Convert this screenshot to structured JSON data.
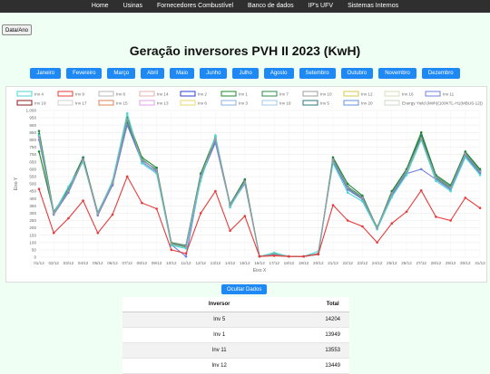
{
  "nav": {
    "items": [
      "Home",
      "Usinas",
      "Fornecedores Combustível",
      "Banco de dados",
      "IP's UFV",
      "Sistemas Internos"
    ]
  },
  "date_button": "Data/Ano",
  "title": "Geração inversores PVH II 2023 (KwH)",
  "months": [
    "Janeiro",
    "Fevereiro",
    "Março",
    "Abril",
    "Maio",
    "Junho",
    "Julho",
    "Agosto",
    "Setembro",
    "Outubro",
    "Novembro",
    "Dezembro"
  ],
  "hide_button": "Ocultar Dados",
  "table": {
    "headers": [
      "Inversor",
      "Total"
    ],
    "rows": [
      {
        "name": "Inv 5",
        "total": "14204"
      },
      {
        "name": "Inv 1",
        "total": "13949"
      },
      {
        "name": "Inv 11",
        "total": "13553"
      },
      {
        "name": "Inv 12",
        "total": "13449"
      }
    ]
  },
  "chart_data": {
    "type": "line",
    "xlabel": "Eixo X",
    "ylabel": "Eixo Y",
    "ylim": [
      0,
      1000
    ],
    "yticks": [
      0,
      50,
      100,
      150,
      200,
      250,
      300,
      350,
      400,
      450,
      500,
      550,
      600,
      650,
      700,
      750,
      800,
      850,
      900,
      950,
      1000
    ],
    "ytick_labels": [
      "0",
      "50",
      "100",
      "150",
      "200",
      "250",
      "300",
      "350",
      "400",
      "450",
      "500",
      "550",
      "600",
      "650",
      "700",
      "750",
      "800",
      "850",
      "900",
      "950",
      "1.000"
    ],
    "x": [
      "01/12",
      "02/12",
      "03/12",
      "04/12",
      "05/12",
      "06/12",
      "07/12",
      "08/12",
      "09/12",
      "10/12",
      "11/12",
      "12/12",
      "13/12",
      "14/12",
      "15/12",
      "16/12",
      "17/12",
      "18/12",
      "19/12",
      "20/12",
      "21/12",
      "22/12",
      "23/12",
      "24/12",
      "25/12",
      "26/12",
      "27/12",
      "28/12",
      "29/12",
      "30/12",
      "31/12"
    ],
    "legend": [
      {
        "name": "Inv 4",
        "color": "#4bd6d6"
      },
      {
        "name": "Inv 9",
        "color": "#e83a3a"
      },
      {
        "name": "Inv 8",
        "color": "#b9b9b9"
      },
      {
        "name": "Inv 14",
        "color": "#e8b0b0"
      },
      {
        "name": "Inv 2",
        "color": "#2b3fd1"
      },
      {
        "name": "Inv 1",
        "color": "#1b8a2a"
      },
      {
        "name": "Inv 7",
        "color": "#2b8c4a"
      },
      {
        "name": "Inv 10",
        "color": "#9c9c9c"
      },
      {
        "name": "Inv 12",
        "color": "#d9c84a"
      },
      {
        "name": "Inv 16",
        "color": "#d8dcb8"
      },
      {
        "name": "Inv 11",
        "color": "#7080e0"
      },
      {
        "name": "Inv 19",
        "color": "#8a1a1a"
      },
      {
        "name": "Inv 17",
        "color": "#d0d0d0"
      },
      {
        "name": "Inv 15",
        "color": "#e08050"
      },
      {
        "name": "Inv 13",
        "color": "#e0a0e8"
      },
      {
        "name": "Inv 6",
        "color": "#e8d870"
      },
      {
        "name": "Inv 3",
        "color": "#8ab0e8"
      },
      {
        "name": "Inv 18",
        "color": "#a0c8e8"
      },
      {
        "name": "Inv 5",
        "color": "#2a7a7a"
      },
      {
        "name": "Inv 20",
        "color": "#6090d8"
      },
      {
        "name": "Energy Yield (kWh)(100KTL-H1(MBUS-12))",
        "color": "#c8d8c8"
      }
    ],
    "series": [
      {
        "name": "Inv 1",
        "color": "#1b8a2a",
        "values": [
          720,
          300,
          470,
          680,
          300,
          500,
          950,
          680,
          610,
          100,
          80,
          570,
          820,
          360,
          530,
          5,
          20,
          5,
          5,
          20,
          680,
          500,
          420,
          200,
          450,
          600,
          850,
          560,
          490,
          720,
          600
        ]
      },
      {
        "name": "Inv 5",
        "color": "#2a7a7a",
        "values": [
          840,
          295,
          450,
          680,
          290,
          500,
          930,
          660,
          600,
          95,
          80,
          560,
          800,
          360,
          520,
          5,
          15,
          5,
          5,
          20,
          670,
          480,
          410,
          200,
          440,
          590,
          830,
          550,
          480,
          710,
          590
        ]
      },
      {
        "name": "Inv 7",
        "color": "#2b8c4a",
        "values": [
          860,
          310,
          460,
          670,
          305,
          510,
          910,
          670,
          590,
          90,
          70,
          550,
          790,
          355,
          510,
          5,
          25,
          5,
          5,
          25,
          660,
          470,
          400,
          205,
          430,
          580,
          820,
          540,
          470,
          700,
          580
        ]
      },
      {
        "name": "Inv 11",
        "color": "#7080e0",
        "values": [
          800,
          290,
          440,
          660,
          285,
          490,
          900,
          650,
          580,
          85,
          5,
          540,
          780,
          350,
          500,
          5,
          15,
          5,
          5,
          20,
          650,
          460,
          395,
          195,
          420,
          570,
          600,
          530,
          460,
          690,
          570
        ]
      },
      {
        "name": "Inv 4",
        "color": "#4bd6d6",
        "values": [
          830,
          300,
          480,
          650,
          300,
          520,
          980,
          640,
          570,
          80,
          60,
          520,
          830,
          340,
          510,
          5,
          30,
          5,
          5,
          40,
          640,
          440,
          380,
          190,
          410,
          560,
          800,
          520,
          450,
          680,
          560
        ]
      },
      {
        "name": "Inv 10",
        "color": "#9c9c9c",
        "values": [
          820,
          295,
          455,
          665,
          295,
          505,
          940,
          665,
          595,
          95,
          75,
          555,
          805,
          355,
          515,
          5,
          20,
          5,
          5,
          25,
          665,
          475,
          405,
          200,
          435,
          585,
          810,
          545,
          475,
          705,
          585
        ]
      },
      {
        "name": "Inv 9",
        "color": "#e83a3a",
        "values": [
          465,
          165,
          265,
          385,
          165,
          290,
          550,
          370,
          330,
          50,
          25,
          300,
          450,
          180,
          280,
          5,
          10,
          5,
          5,
          20,
          355,
          250,
          210,
          100,
          230,
          310,
          455,
          275,
          250,
          405,
          335
        ]
      }
    ]
  }
}
